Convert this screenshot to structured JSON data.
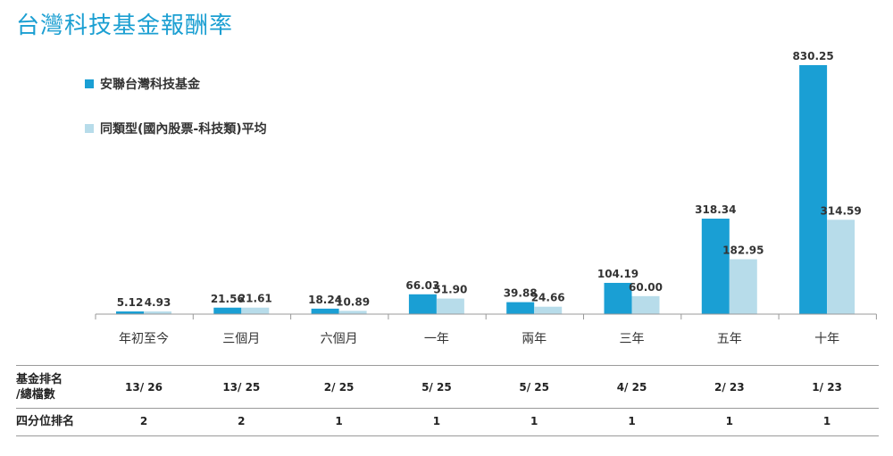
{
  "title": "台灣科技基金報酬率",
  "colors": {
    "fund": "#1a9fd4",
    "peer": "#b7dcea",
    "title": "#1b9fd2",
    "axis": "#999999",
    "text": "#333333"
  },
  "chart_data": {
    "type": "bar",
    "title": "台灣科技基金報酬率",
    "categories": [
      "年初至今",
      "三個月",
      "六個月",
      "一年",
      "兩年",
      "三年",
      "五年",
      "十年"
    ],
    "series": [
      {
        "name": "安聯台灣科技基金",
        "values": [
          5.12,
          21.56,
          18.24,
          66.03,
          39.88,
          104.19,
          318.34,
          830.25
        ],
        "labels": [
          "5.12",
          "21.56",
          "18.24",
          "66.03",
          "39.88",
          "104.19",
          "318.34",
          "830.25"
        ]
      },
      {
        "name": "同類型(國內股票-科技類)平均",
        "values": [
          4.93,
          21.61,
          10.89,
          51.9,
          24.66,
          60.0,
          182.95,
          314.59
        ],
        "labels": [
          "4.93",
          "21.61",
          "10.89",
          "51.90",
          "24.66",
          "60.00",
          "182.95",
          "314.59"
        ]
      }
    ],
    "ylim": [
      0,
      830.25
    ],
    "grid": false,
    "legend": "top-left"
  },
  "table": {
    "rows": [
      {
        "header": [
          "基金排名",
          "/總檔數"
        ],
        "values": [
          "13/ 26",
          "13/ 25",
          "2/ 25",
          "5/ 25",
          "5/ 25",
          "4/ 25",
          "2/ 23",
          "1/ 23"
        ]
      },
      {
        "header": [
          "四分位排名"
        ],
        "values": [
          "2",
          "2",
          "1",
          "1",
          "1",
          "1",
          "1",
          "1"
        ]
      }
    ]
  }
}
